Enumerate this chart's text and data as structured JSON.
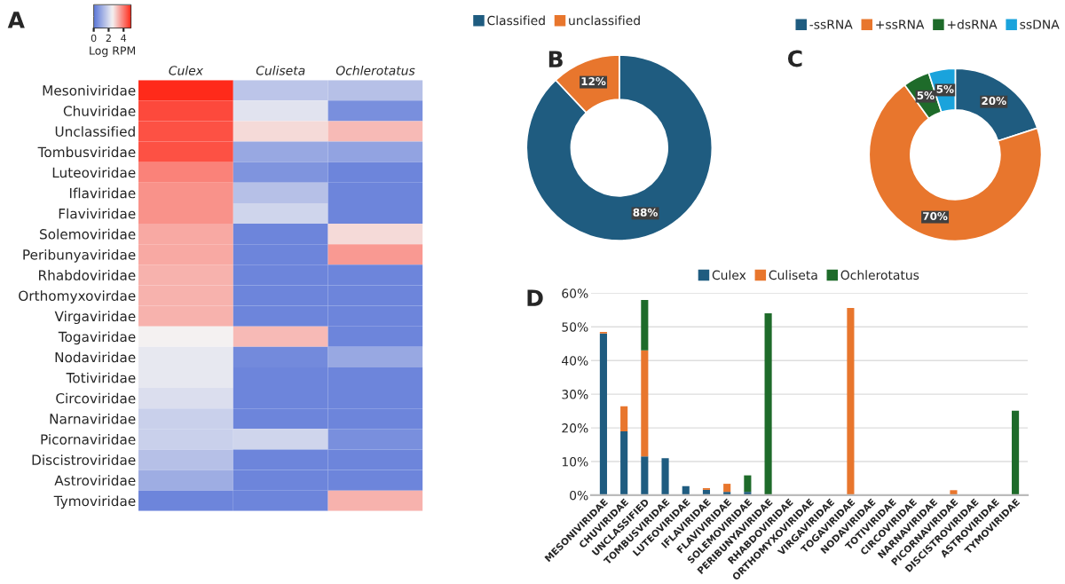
{
  "chart_data": [
    {
      "type": "heatmap",
      "title": "A",
      "clabel": "Log RPM",
      "clim": [
        0,
        5
      ],
      "cticks": [
        0,
        2,
        4
      ],
      "categories": [
        "Culex",
        "Culiseta",
        "Ochlerotatus"
      ],
      "y_categories": [
        "Mesoniviridae",
        "Chuviridae",
        "Unclassified",
        "Tombusviridae",
        "Luteoviridae",
        "Iflaviridae",
        "Flaviviridae",
        "Solemoviridae",
        "Peribunyaviridae",
        "Rhabdoviridae",
        "Orthomyxovirdae",
        "Virgaviridae",
        "Togaviridae",
        "Nodaviridae",
        "Totiviridae",
        "Circoviridae",
        "Narnaviridae",
        "Picornaviridae",
        "Discistroviridae",
        "Astroviridae",
        "Tymoviridae"
      ],
      "cells": [
        [
          5.0,
          1.6,
          1.5
        ],
        [
          4.6,
          2.2,
          0.5
        ],
        [
          4.5,
          2.8,
          3.2
        ],
        [
          4.5,
          1.0,
          0.9
        ],
        [
          3.9,
          0.6,
          0.3
        ],
        [
          3.7,
          1.5,
          0.3
        ],
        [
          3.7,
          1.9,
          0.3
        ],
        [
          3.4,
          0.3,
          2.8
        ],
        [
          3.4,
          0.3,
          3.6
        ],
        [
          3.3,
          0.3,
          0.3
        ],
        [
          3.3,
          0.3,
          0.3
        ],
        [
          3.3,
          0.3,
          0.3
        ],
        [
          2.5,
          3.2,
          0.3
        ],
        [
          2.3,
          0.4,
          1.0
        ],
        [
          2.3,
          0.3,
          0.3
        ],
        [
          2.1,
          0.3,
          0.3
        ],
        [
          1.8,
          0.3,
          0.3
        ],
        [
          1.8,
          1.9,
          0.5
        ],
        [
          1.5,
          0.3,
          0.3
        ],
        [
          1.1,
          0.3,
          0.3
        ],
        [
          0.3,
          0.3,
          3.3
        ]
      ]
    },
    {
      "type": "donut",
      "title": "B",
      "legend": "top left",
      "categories": [
        "Classified",
        "unclassified"
      ],
      "values": [
        88,
        12
      ],
      "colors": [
        "#1f5c80",
        "#e8762d"
      ],
      "value_labels": [
        "88%",
        "12%"
      ]
    },
    {
      "type": "donut",
      "title": "C",
      "legend": "top",
      "categories": [
        "-ssRNA",
        "+ssRNA",
        "+dsRNA",
        "ssDNA"
      ],
      "values": [
        20,
        70,
        5,
        5
      ],
      "colors": [
        "#1f5c80",
        "#e8762d",
        "#1e6b2a",
        "#1aa3dc"
      ],
      "value_labels": [
        "20%",
        "70%",
        "5%",
        "5%"
      ]
    },
    {
      "type": "bar",
      "title": "D",
      "stacked": true,
      "legend": "top",
      "grid": "y",
      "ylim": [
        0,
        60
      ],
      "yticks": [
        {
          "value": 0,
          "label": "0%"
        },
        {
          "value": 10,
          "label": "10%"
        },
        {
          "value": 20,
          "label": "20%"
        },
        {
          "value": 30,
          "label": "30%"
        },
        {
          "value": 40,
          "label": "40%"
        },
        {
          "value": 50,
          "label": "50%"
        },
        {
          "value": 60,
          "label": "60%"
        }
      ],
      "categories": [
        "MESONIVIRIDAE",
        "CHUVIRIDAE",
        "UNCLASSIFIED",
        "TOMBUSVIRIDAE",
        "LUTEOVIRIDAE",
        "IFLAVIRIDAE",
        "FLAVIVIRIDAE",
        "SOLEMOVIRIDAE",
        "PERIBUNYAVIRIDAE",
        "RHABDOVIRIDAE",
        "ORTHOMYXOVIRIDAE",
        "VIRGAVIRIDAE",
        "TOGAVIRIDAE",
        "NODAVIRIDAE",
        "TOTIVIRIDAE",
        "CIRCOVIRIDAE",
        "NARNAVIRIDAE",
        "PICORNAVIRIDAE",
        "DISCISTROVIRIDAE",
        "ASTROVIRIDAE",
        "TYMOVIRIDAE"
      ],
      "series": [
        {
          "name": "Culex",
          "color": "#1f5c80",
          "values": [
            48,
            19,
            11.5,
            11,
            2.7,
            1.6,
            1,
            1,
            null,
            null,
            null,
            null,
            0,
            null,
            null,
            null,
            null,
            null,
            null,
            null,
            0
          ]
        },
        {
          "name": "Culiseta",
          "color": "#e8762d",
          "values": [
            0.5,
            7.4,
            31.5,
            0,
            0,
            0.5,
            2.4,
            0,
            0,
            0,
            0,
            0,
            55.6,
            0,
            0,
            0,
            0,
            1.5,
            0,
            0,
            0
          ]
        },
        {
          "name": "Ochlerotatus",
          "color": "#1e6b2a",
          "values": [
            0,
            0,
            15,
            0,
            0,
            0,
            0,
            4.9,
            54,
            0,
            0,
            0,
            0,
            0,
            0,
            0,
            0,
            0,
            0,
            0,
            25.1
          ]
        }
      ]
    }
  ]
}
